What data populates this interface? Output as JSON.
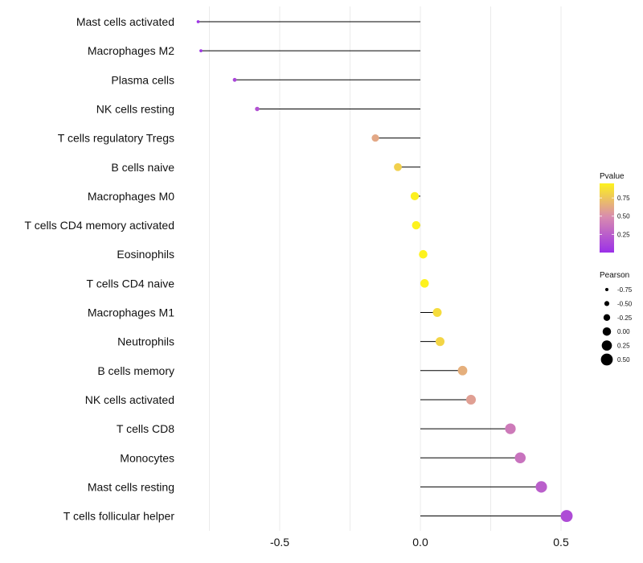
{
  "chart_data": {
    "type": "lollipop",
    "xlim": [
      -0.82,
      0.55
    ],
    "x_ticks": [
      {
        "value": -0.5,
        "label": "-0.5"
      },
      {
        "value": 0.0,
        "label": "0.0"
      },
      {
        "value": 0.5,
        "label": "0.5"
      }
    ],
    "series": [
      {
        "category": "Mast cells activated",
        "pearson": -0.79,
        "pvalue": 0.02
      },
      {
        "category": "Macrophages M2",
        "pearson": -0.78,
        "pvalue": 0.03
      },
      {
        "category": "Plasma cells",
        "pearson": -0.66,
        "pvalue": 0.12
      },
      {
        "category": "NK cells resting",
        "pearson": -0.58,
        "pvalue": 0.18
      },
      {
        "category": "T cells regulatory  Tregs",
        "pearson": -0.16,
        "pvalue": 0.62
      },
      {
        "category": "B cells naive",
        "pearson": -0.08,
        "pvalue": 0.8
      },
      {
        "category": "Macrophages M0",
        "pearson": -0.02,
        "pvalue": 0.94
      },
      {
        "category": "T cells CD4 memory activated",
        "pearson": -0.015,
        "pvalue": 0.95
      },
      {
        "category": "Eosinophils",
        "pearson": 0.01,
        "pvalue": 0.97
      },
      {
        "category": "T cells CD4 naive",
        "pearson": 0.015,
        "pvalue": 0.96
      },
      {
        "category": "Macrophages M1",
        "pearson": 0.06,
        "pvalue": 0.85
      },
      {
        "category": "Neutrophils",
        "pearson": 0.07,
        "pvalue": 0.82
      },
      {
        "category": "B cells memory",
        "pearson": 0.15,
        "pvalue": 0.65
      },
      {
        "category": "NK cells activated",
        "pearson": 0.18,
        "pvalue": 0.58
      },
      {
        "category": "T cells CD8",
        "pearson": 0.32,
        "pvalue": 0.4
      },
      {
        "category": "Monocytes",
        "pearson": 0.355,
        "pvalue": 0.36
      },
      {
        "category": "Mast cells resting",
        "pearson": 0.43,
        "pvalue": 0.25
      },
      {
        "category": "T cells follicular helper",
        "pearson": 0.52,
        "pvalue": 0.15
      }
    ],
    "legend_pvalue": {
      "title": "Pvalue",
      "range": [
        0.0,
        0.95
      ],
      "ticks": [
        {
          "value": 0.75,
          "label": "0.75"
        },
        {
          "value": 0.5,
          "label": "0.50"
        },
        {
          "value": 0.25,
          "label": "0.25"
        }
      ],
      "color_low": "#9b30e8",
      "color_mid": "#d98cae",
      "color_high": "#fdf21d"
    },
    "legend_pearson": {
      "title": "Pearson",
      "entries": [
        {
          "value": -0.75,
          "label": "-0.75"
        },
        {
          "value": -0.5,
          "label": "-0.50"
        },
        {
          "value": -0.25,
          "label": "-0.25"
        },
        {
          "value": 0.0,
          "label": "0.00"
        },
        {
          "value": 0.25,
          "label": "0.25"
        },
        {
          "value": 0.5,
          "label": "0.50"
        }
      ]
    },
    "colors": {
      "stem": "#000000",
      "grid": "#ebebeb"
    }
  }
}
